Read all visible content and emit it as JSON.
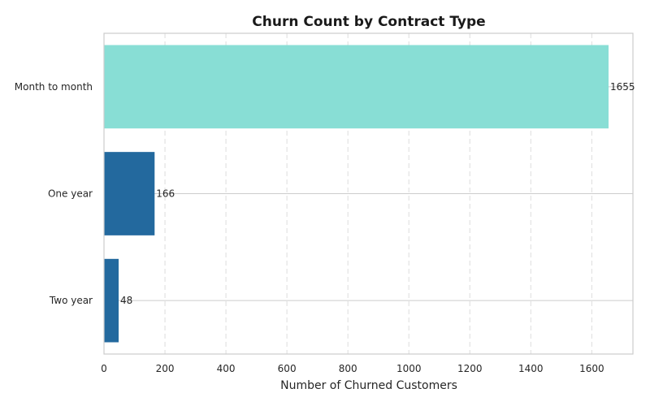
{
  "chart_data": {
    "type": "bar",
    "orientation": "horizontal",
    "title": "Churn Count by Contract Type",
    "xlabel": "Number of Churned Customers",
    "ylabel": "",
    "categories": [
      "Month to month",
      "One year",
      "Two year"
    ],
    "values": [
      1655,
      166,
      48
    ],
    "data_labels": [
      "1655",
      "166",
      "48"
    ],
    "bar_colors": [
      "#88ded5",
      "#23699e",
      "#23699e"
    ],
    "xlim": [
      0,
      1735
    ],
    "xticks": [
      0,
      200,
      400,
      600,
      800,
      1000,
      1200,
      1400,
      1600
    ],
    "xtick_labels": [
      "0",
      "200",
      "400",
      "600",
      "800",
      "1000",
      "1200",
      "1400",
      "1600"
    ],
    "grid": {
      "x": "dashed",
      "y": "solid"
    },
    "legend": "none"
  }
}
